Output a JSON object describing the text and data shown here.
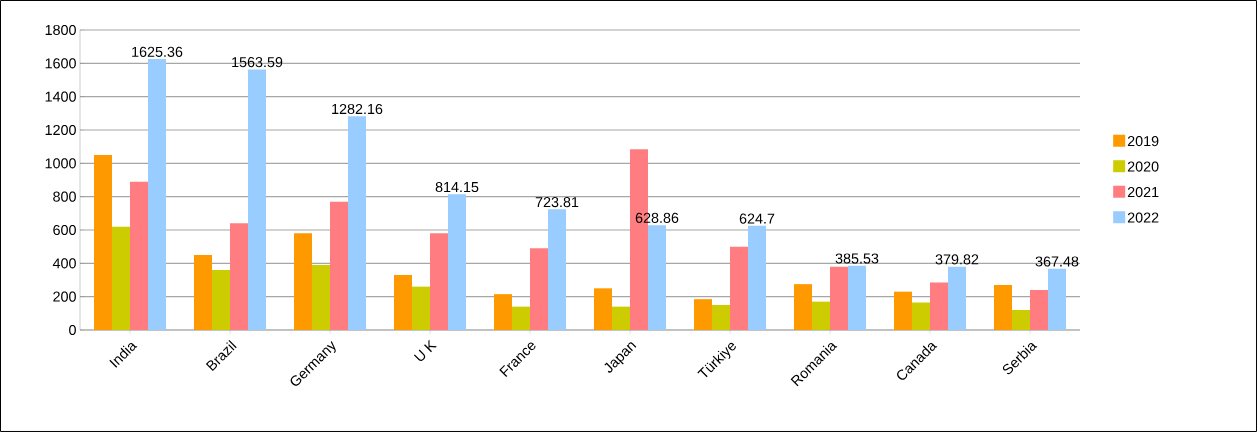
{
  "chart_data": {
    "type": "bar",
    "categories": [
      "India",
      "Brazil",
      "Germany",
      "U K",
      "France",
      "Japan",
      "Türkiye",
      "Romania",
      "Canada",
      "Serbia"
    ],
    "series": [
      {
        "name": "2019",
        "color": "#ff9900",
        "values": [
          1050,
          450,
          580,
          330,
          215,
          250,
          185,
          275,
          230,
          270
        ]
      },
      {
        "name": "2020",
        "color": "#cccc00",
        "values": [
          620,
          360,
          390,
          260,
          140,
          140,
          150,
          170,
          165,
          120
        ]
      },
      {
        "name": "2021",
        "color": "#ff7c80",
        "values": [
          890,
          640,
          770,
          580,
          490,
          1085,
          500,
          380,
          285,
          240
        ]
      },
      {
        "name": "2022",
        "color": "#99ccff",
        "values": [
          1625.36,
          1563.59,
          1282.16,
          814.15,
          723.81,
          628.86,
          624.7,
          385.53,
          379.82,
          367.48
        ],
        "value_labels": [
          "1625.36",
          "1563.59",
          "1282.16",
          "814.15",
          "723.81",
          "628.86",
          "624.7",
          "385.53",
          "379.82",
          "367.48"
        ]
      }
    ],
    "ylim": [
      0,
      1800
    ],
    "yticks": [
      0,
      200,
      400,
      600,
      800,
      1000,
      1200,
      1400,
      1600,
      1800
    ],
    "grid": "y",
    "legend": "right"
  }
}
